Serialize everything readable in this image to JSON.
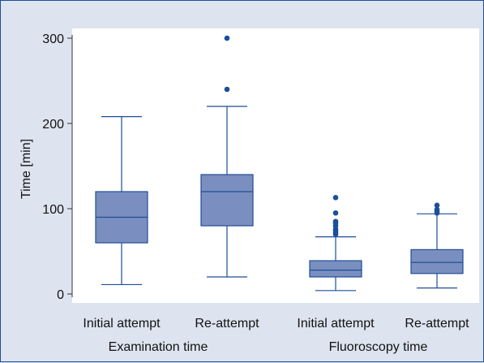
{
  "chart_data": {
    "type": "boxplot",
    "ylabel": "Time [min]",
    "ylim": [
      -10,
      310
    ],
    "yticks": [
      0,
      100,
      200,
      300
    ],
    "categories": [
      "Initial attempt",
      "Re-attempt",
      "Initial attempt",
      "Re-attempt"
    ],
    "groups": [
      "Examination time",
      "Fluoroscopy time"
    ],
    "boxes": [
      {
        "label": "Initial attempt",
        "group": "Examination time",
        "whisker_low": 11,
        "q1": 60,
        "median": 90,
        "q3": 120,
        "whisker_high": 208,
        "outliers": []
      },
      {
        "label": "Re-attempt",
        "group": "Examination time",
        "whisker_low": 20,
        "q1": 80,
        "median": 120,
        "q3": 140,
        "whisker_high": 220,
        "outliers": [
          240,
          300
        ]
      },
      {
        "label": "Initial attempt",
        "group": "Fluoroscopy time",
        "whisker_low": 4,
        "q1": 20,
        "median": 28,
        "q3": 39,
        "whisker_high": 67,
        "outliers": [
          70,
          72,
          74,
          76,
          80,
          83,
          85,
          95,
          113
        ]
      },
      {
        "label": "Re-attempt",
        "group": "Fluoroscopy time",
        "whisker_low": 7,
        "q1": 24,
        "median": 37,
        "q3": 52,
        "whisker_high": 94,
        "outliers": [
          95,
          97,
          99,
          104
        ]
      }
    ],
    "grid": false,
    "colors": {
      "box_fill": "#7a8fc0",
      "stroke": "#1f4e96",
      "outlier": "#1a4f99",
      "background": "#dde4ef",
      "plot_background": "#ffffff"
    }
  }
}
